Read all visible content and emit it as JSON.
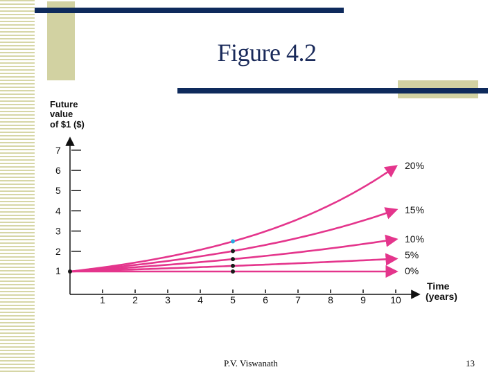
{
  "slide": {
    "title": "Figure 4.2",
    "footer_author": "P.V. Viswanath",
    "page_number": "13",
    "colors": {
      "navy": "#0e2a5c",
      "tan": "#d2d2a2",
      "series": "#e4358c",
      "highlight": "#29a8e0",
      "marker": "#1a1a1a"
    }
  },
  "chart_data": {
    "type": "line",
    "ylabel_lines": [
      "Future",
      "value",
      "of $1 ($)"
    ],
    "xlabel_lines": [
      "Time",
      "(years)"
    ],
    "ylim": [
      0,
      7
    ],
    "xlim": [
      0,
      10
    ],
    "y_ticks": [
      "1",
      "2",
      "3",
      "4",
      "5",
      "6",
      "7"
    ],
    "x_ticks": [
      "1",
      "2",
      "3",
      "4",
      "5",
      "6",
      "7",
      "8",
      "9",
      "10"
    ],
    "origin_label": "1",
    "grid": false,
    "series": [
      {
        "name": "0%",
        "rate": 0.0,
        "values": [
          1,
          1,
          1,
          1,
          1,
          1,
          1,
          1,
          1,
          1,
          1
        ]
      },
      {
        "name": "5%",
        "rate": 0.05,
        "values": [
          1,
          1.05,
          1.1,
          1.16,
          1.22,
          1.28,
          1.34,
          1.41,
          1.48,
          1.55,
          1.63
        ]
      },
      {
        "name": "10%",
        "rate": 0.1,
        "values": [
          1,
          1.1,
          1.21,
          1.33,
          1.46,
          1.61,
          1.77,
          1.95,
          2.14,
          2.36,
          2.59
        ]
      },
      {
        "name": "15%",
        "rate": 0.15,
        "values": [
          1,
          1.15,
          1.32,
          1.52,
          1.75,
          2.01,
          2.31,
          2.66,
          3.06,
          3.52,
          4.05
        ]
      },
      {
        "name": "20%",
        "rate": 0.2,
        "values": [
          1,
          1.2,
          1.44,
          1.73,
          2.07,
          2.49,
          2.99,
          3.58,
          4.3,
          5.16,
          6.19
        ]
      }
    ],
    "markers_at_x": 5
  }
}
